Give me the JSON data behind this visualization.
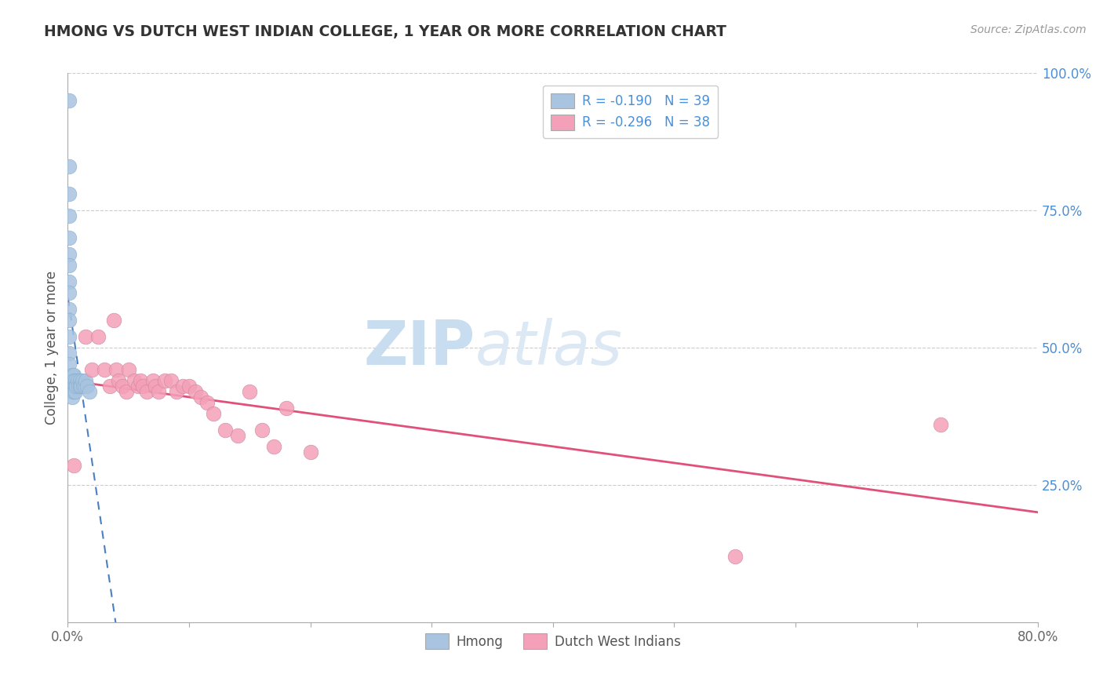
{
  "title": "HMONG VS DUTCH WEST INDIAN COLLEGE, 1 YEAR OR MORE CORRELATION CHART",
  "source": "Source: ZipAtlas.com",
  "xlabel": "",
  "ylabel": "College, 1 year or more",
  "xlim": [
    0.0,
    0.8
  ],
  "ylim": [
    0.0,
    1.0
  ],
  "xticks": [
    0.0,
    0.1,
    0.2,
    0.3,
    0.4,
    0.5,
    0.6,
    0.7,
    0.8
  ],
  "xtick_labels": [
    "0.0%",
    "",
    "",
    "",
    "",
    "",
    "",
    "",
    "80.0%"
  ],
  "ytick_labels": [
    "25.0%",
    "50.0%",
    "75.0%",
    "100.0%"
  ],
  "ytick_vals": [
    0.25,
    0.5,
    0.75,
    1.0
  ],
  "legend_r_hmong": "R = -0.190",
  "legend_n_hmong": "N = 39",
  "legend_r_dutch": "R = -0.296",
  "legend_n_dutch": "N = 38",
  "hmong_color": "#a8c4e0",
  "dutch_color": "#f4a0b8",
  "hmong_line_color": "#4a7fc0",
  "dutch_line_color": "#e0507a",
  "background_color": "#ffffff",
  "watermark_zip": "ZIP",
  "watermark_atlas": "atlas",
  "hmong_x": [
    0.001,
    0.001,
    0.001,
    0.001,
    0.001,
    0.001,
    0.001,
    0.001,
    0.001,
    0.001,
    0.001,
    0.001,
    0.001,
    0.001,
    0.001,
    0.004,
    0.004,
    0.004,
    0.004,
    0.004,
    0.005,
    0.005,
    0.005,
    0.005,
    0.006,
    0.006,
    0.006,
    0.007,
    0.008,
    0.009,
    0.01,
    0.01,
    0.011,
    0.012,
    0.013,
    0.014,
    0.015,
    0.016,
    0.018
  ],
  "hmong_y": [
    0.95,
    0.83,
    0.78,
    0.74,
    0.7,
    0.67,
    0.65,
    0.62,
    0.6,
    0.57,
    0.55,
    0.52,
    0.49,
    0.47,
    0.44,
    0.45,
    0.44,
    0.43,
    0.42,
    0.41,
    0.45,
    0.44,
    0.43,
    0.42,
    0.44,
    0.43,
    0.42,
    0.43,
    0.44,
    0.43,
    0.44,
    0.43,
    0.43,
    0.44,
    0.43,
    0.43,
    0.44,
    0.43,
    0.42
  ],
  "dutch_x": [
    0.005,
    0.015,
    0.02,
    0.025,
    0.03,
    0.035,
    0.038,
    0.04,
    0.042,
    0.045,
    0.048,
    0.05,
    0.055,
    0.058,
    0.06,
    0.062,
    0.065,
    0.07,
    0.072,
    0.075,
    0.08,
    0.085,
    0.09,
    0.095,
    0.1,
    0.105,
    0.11,
    0.115,
    0.12,
    0.13,
    0.14,
    0.15,
    0.16,
    0.17,
    0.18,
    0.2,
    0.55,
    0.72
  ],
  "dutch_y": [
    0.285,
    0.52,
    0.46,
    0.52,
    0.46,
    0.43,
    0.55,
    0.46,
    0.44,
    0.43,
    0.42,
    0.46,
    0.44,
    0.43,
    0.44,
    0.43,
    0.42,
    0.44,
    0.43,
    0.42,
    0.44,
    0.44,
    0.42,
    0.43,
    0.43,
    0.42,
    0.41,
    0.4,
    0.38,
    0.35,
    0.34,
    0.42,
    0.35,
    0.32,
    0.39,
    0.31,
    0.12,
    0.36
  ]
}
